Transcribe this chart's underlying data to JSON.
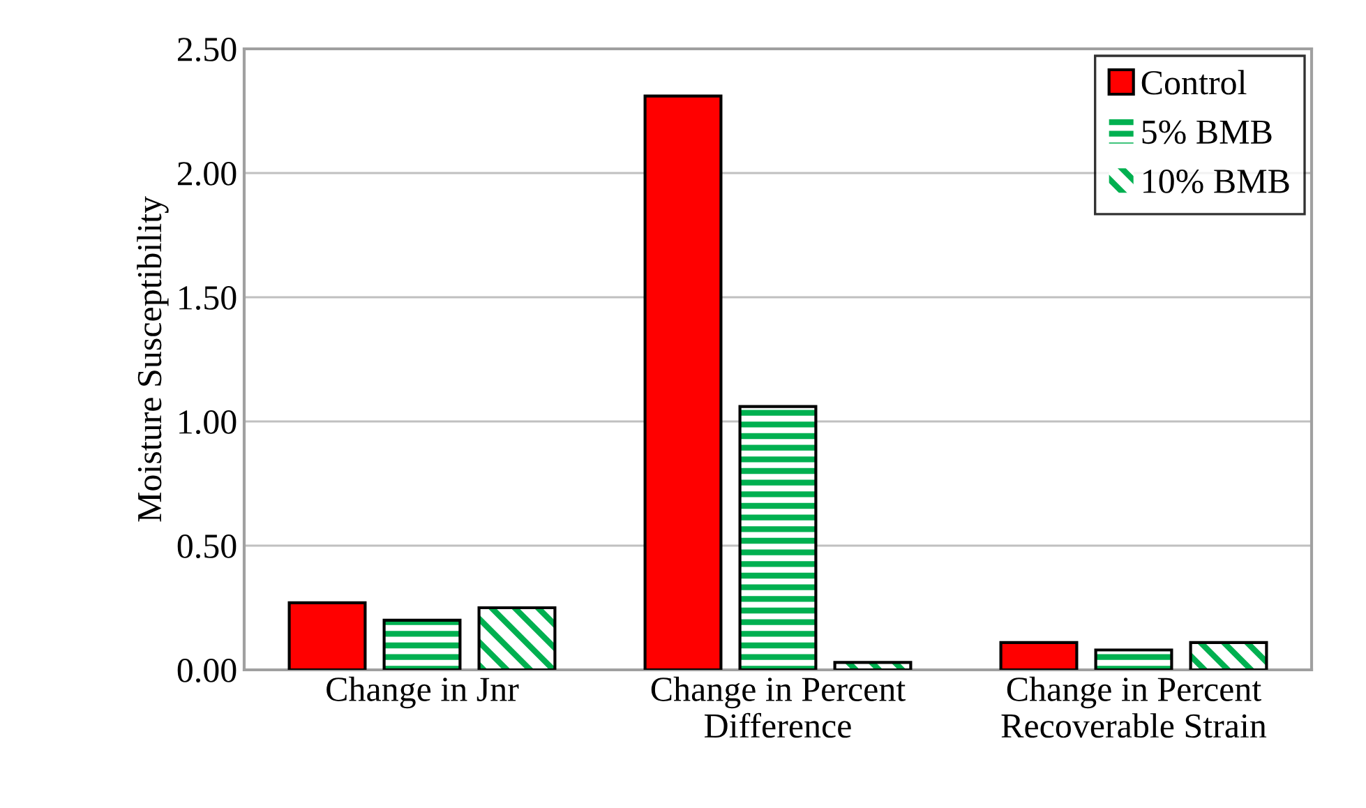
{
  "chart_data": {
    "type": "bar",
    "ylabel": "Moisture Susceptibility",
    "categories": [
      "Change in Jnr",
      "Change in Percent\nDifference",
      "Change in Percent\nRecoverable Strain"
    ],
    "series": [
      {
        "name": "Control",
        "color": "#ff0000",
        "values": [
          0.27,
          2.31,
          0.11
        ]
      },
      {
        "name": "5% BMB",
        "color": "#00b050",
        "values": [
          0.2,
          1.06,
          0.08
        ]
      },
      {
        "name": "10% BMB",
        "color": "#00b050",
        "values": [
          0.25,
          0.03,
          0.11
        ]
      }
    ],
    "ylim": [
      0,
      2.5
    ],
    "yticks": [
      {
        "value": 0,
        "label": "0.00"
      },
      {
        "value": 0.5,
        "label": "0.50"
      },
      {
        "value": 1.0,
        "label": "1.00"
      },
      {
        "value": 1.5,
        "label": "1.50"
      },
      {
        "value": 2.0,
        "label": "2.00"
      },
      {
        "value": 2.5,
        "label": "2.50"
      }
    ],
    "grid": "y",
    "legend": "top right"
  }
}
